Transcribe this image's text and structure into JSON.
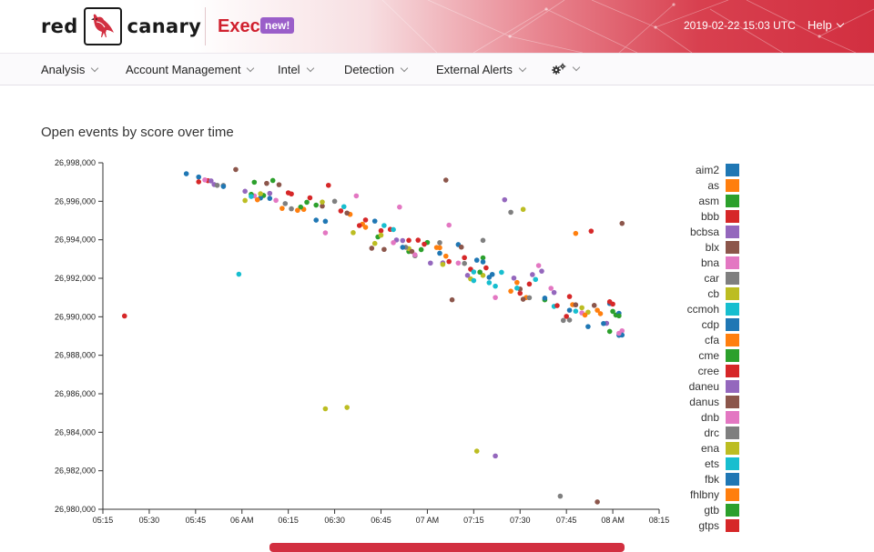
{
  "header": {
    "logo_left": "red",
    "logo_right": "canary",
    "section_title": "Exec",
    "badge": "new!",
    "timestamp": "2019-02-22 15:03 UTC",
    "help_label": "Help"
  },
  "nav": {
    "items": [
      {
        "label": "Analysis"
      },
      {
        "label": "Account Management"
      },
      {
        "label": "Intel"
      },
      {
        "label": "Detection"
      },
      {
        "label": "External Alerts"
      }
    ],
    "settings_icon": "gears-icon"
  },
  "colors": {
    "brand_red": "#d22f40",
    "badge_purple": "#9a5ec9"
  },
  "chart_data": {
    "type": "scatter",
    "title": "Open events by score over time",
    "xlabel": "",
    "ylabel": "",
    "xlim": [
      "05:15",
      "08:15"
    ],
    "ylim": [
      26980000,
      26998000
    ],
    "x_ticks": [
      "05:15",
      "05:30",
      "05:45",
      "06 AM",
      "06:15",
      "06:30",
      "06:45",
      "07 AM",
      "07:15",
      "07:30",
      "07:45",
      "08 AM",
      "08:15"
    ],
    "y_ticks": [
      "26,980,000",
      "26,982,000",
      "26,984,000",
      "26,986,000",
      "26,988,000",
      "26,990,000",
      "26,992,000",
      "26,994,000",
      "26,996,000",
      "26,998,000"
    ],
    "legend_position": "right",
    "series": [
      {
        "name": "aim2",
        "color": "#1f77b4",
        "points": [
          [
            "05:42",
            26997430
          ],
          [
            "05:46",
            26997260
          ],
          [
            "06:27",
            26994960
          ],
          [
            "07:04",
            26993300
          ],
          [
            "07:20",
            26992050
          ],
          [
            "07:59",
            26990690
          ],
          [
            "08:02",
            26989040
          ]
        ]
      },
      {
        "name": "as",
        "color": "#ff7f0e",
        "points": [
          [
            "06:20",
            26995580
          ],
          [
            "06:35",
            26995320
          ],
          [
            "07:04",
            26993590
          ],
          [
            "07:56",
            26990160
          ],
          [
            "07:32",
            26991000
          ],
          [
            "07:48",
            26994330
          ]
        ]
      },
      {
        "name": "asm",
        "color": "#2ca02c",
        "points": [
          [
            "06:07",
            26996300
          ],
          [
            "06:19",
            26995700
          ],
          [
            "06:10",
            26997080
          ],
          [
            "06:54",
            26993390
          ],
          [
            "07:18",
            26993060
          ],
          [
            "08:00",
            26990280
          ]
        ]
      },
      {
        "name": "bbb",
        "color": "#d62728",
        "points": [
          [
            "05:22",
            26990040
          ],
          [
            "05:49",
            26997070
          ],
          [
            "06:22",
            26996180
          ],
          [
            "06:32",
            26995500
          ],
          [
            "06:40",
            26995030
          ],
          [
            "06:48",
            26994540
          ],
          [
            "06:57",
            26993980
          ],
          [
            "07:14",
            26992470
          ],
          [
            "07:30",
            26991220
          ],
          [
            "07:53",
            26994450
          ],
          [
            "07:45",
            26990020
          ]
        ]
      },
      {
        "name": "bcbsa",
        "color": "#9467bd",
        "points": [
          [
            "05:51",
            26996870
          ],
          [
            "06:01",
            26996520
          ],
          [
            "06:50",
            26993990
          ],
          [
            "07:05",
            26992800
          ],
          [
            "07:25",
            26996080
          ],
          [
            "07:34",
            26992190
          ],
          [
            "07:41",
            26991260
          ],
          [
            "07:58",
            26989660
          ]
        ]
      },
      {
        "name": "blx",
        "color": "#8c564b",
        "points": [
          [
            "05:58",
            26997650
          ],
          [
            "06:12",
            26996860
          ],
          [
            "06:34",
            26995390
          ],
          [
            "06:46",
            26993500
          ],
          [
            "07:06",
            26997100
          ],
          [
            "07:08",
            26990880
          ],
          [
            "07:31",
            26990910
          ],
          [
            "07:54",
            26990590
          ],
          [
            "08:03",
            26994850
          ],
          [
            "07:55",
            26980380
          ]
        ]
      },
      {
        "name": "bna",
        "color": "#e377c2",
        "points": [
          [
            "05:48",
            26997110
          ],
          [
            "06:04",
            26996280
          ],
          [
            "06:37",
            26996280
          ],
          [
            "06:51",
            26995700
          ],
          [
            "07:07",
            26994760
          ],
          [
            "07:22",
            26991000
          ],
          [
            "07:36",
            26992660
          ],
          [
            "07:50",
            26990200
          ],
          [
            "08:03",
            26989270
          ]
        ]
      },
      {
        "name": "car",
        "color": "#7f7f7f",
        "points": [
          [
            "05:52",
            26996830
          ],
          [
            "06:14",
            26995880
          ],
          [
            "06:30",
            26996000
          ],
          [
            "06:56",
            26993170
          ],
          [
            "07:04",
            26993850
          ],
          [
            "07:18",
            26993970
          ],
          [
            "07:27",
            26995430
          ],
          [
            "07:44",
            26989810
          ],
          [
            "07:43",
            26980680
          ]
        ]
      },
      {
        "name": "cb",
        "color": "#bcbd22",
        "points": [
          [
            "06:01",
            26996040
          ],
          [
            "06:36",
            26994370
          ],
          [
            "06:43",
            26993810
          ],
          [
            "06:54",
            26993540
          ],
          [
            "07:14",
            26991970
          ],
          [
            "07:31",
            26995580
          ],
          [
            "07:52",
            26990240
          ],
          [
            "06:27",
            26985220
          ],
          [
            "06:34",
            26985290
          ],
          [
            "07:16",
            26983020
          ]
        ]
      },
      {
        "name": "ccmoh",
        "color": "#17becf",
        "points": [
          [
            "05:59",
            26992210
          ],
          [
            "06:33",
            26995720
          ],
          [
            "06:49",
            26994530
          ],
          [
            "07:15",
            26992330
          ],
          [
            "07:20",
            26991770
          ],
          [
            "07:24",
            26992310
          ],
          [
            "07:35",
            26991940
          ],
          [
            "07:48",
            26990290
          ]
        ]
      },
      {
        "name": "cdp",
        "color": "#1f77b4",
        "points": [
          [
            "06:06",
            26996170
          ],
          [
            "06:24",
            26995020
          ],
          [
            "06:43",
            26994970
          ],
          [
            "07:10",
            26993750
          ],
          [
            "07:21",
            26992200
          ],
          [
            "07:46",
            26990340
          ],
          [
            "07:57",
            26989650
          ],
          [
            "08:03",
            26989050
          ]
        ]
      },
      {
        "name": "cfa",
        "color": "#ff7f0e",
        "points": [
          [
            "06:05",
            26996080
          ],
          [
            "06:18",
            26995530
          ],
          [
            "06:39",
            26994810
          ],
          [
            "07:03",
            26993600
          ],
          [
            "07:29",
            26991780
          ],
          [
            "07:47",
            26990630
          ],
          [
            "07:55",
            26990340
          ]
        ]
      },
      {
        "name": "cme",
        "color": "#2ca02c",
        "points": [
          [
            "06:03",
            26996360
          ],
          [
            "06:21",
            26995950
          ],
          [
            "06:44",
            26994150
          ],
          [
            "07:00",
            26993860
          ],
          [
            "07:38",
            26990880
          ],
          [
            "08:01",
            26990090
          ]
        ]
      },
      {
        "name": "cree",
        "color": "#d62728",
        "points": [
          [
            "05:46",
            26997010
          ],
          [
            "06:16",
            26996380
          ],
          [
            "06:28",
            26996830
          ],
          [
            "06:45",
            26994470
          ],
          [
            "06:59",
            26993770
          ],
          [
            "07:12",
            26993070
          ],
          [
            "07:33",
            26991700
          ],
          [
            "07:46",
            26991050
          ],
          [
            "07:59",
            26990780
          ]
        ]
      },
      {
        "name": "daneu",
        "color": "#9467bd",
        "points": [
          [
            "05:50",
            26997060
          ],
          [
            "06:09",
            26996410
          ],
          [
            "06:52",
            26993960
          ],
          [
            "07:01",
            26992790
          ],
          [
            "07:13",
            26992150
          ],
          [
            "07:28",
            26992010
          ],
          [
            "07:37",
            26992370
          ],
          [
            "07:22",
            26982770
          ]
        ]
      },
      {
        "name": "danus",
        "color": "#8c564b",
        "points": [
          [
            "06:08",
            26996930
          ],
          [
            "06:26",
            26995750
          ],
          [
            "06:42",
            26993560
          ],
          [
            "06:55",
            26993390
          ],
          [
            "07:11",
            26993620
          ],
          [
            "07:30",
            26991440
          ],
          [
            "07:48",
            26990620
          ]
        ]
      },
      {
        "name": "dnb",
        "color": "#e377c2",
        "points": [
          [
            "06:11",
            26996050
          ],
          [
            "06:27",
            26994360
          ],
          [
            "06:49",
            26993850
          ],
          [
            "06:56",
            26993220
          ],
          [
            "07:10",
            26992790
          ],
          [
            "07:40",
            26991480
          ],
          [
            "08:02",
            26989140
          ]
        ]
      },
      {
        "name": "drc",
        "color": "#7f7f7f",
        "points": [
          [
            "05:54",
            26996820
          ],
          [
            "06:16",
            26995610
          ],
          [
            "06:53",
            26993610
          ],
          [
            "07:12",
            26992770
          ],
          [
            "07:33",
            26990990
          ],
          [
            "07:46",
            26989830
          ]
        ]
      },
      {
        "name": "ena",
        "color": "#bcbd22",
        "points": [
          [
            "06:06",
            26996390
          ],
          [
            "06:26",
            26995960
          ],
          [
            "06:45",
            26994240
          ],
          [
            "07:05",
            26992720
          ],
          [
            "07:18",
            26992150
          ],
          [
            "07:50",
            26990470
          ]
        ]
      },
      {
        "name": "ets",
        "color": "#17becf",
        "points": [
          [
            "06:03",
            26996250
          ],
          [
            "06:46",
            26994740
          ],
          [
            "07:15",
            26991880
          ],
          [
            "07:22",
            26991590
          ],
          [
            "07:29",
            26991490
          ],
          [
            "07:41",
            26990540
          ]
        ]
      },
      {
        "name": "fbk",
        "color": "#1f77b4",
        "points": [
          [
            "05:54",
            26996770
          ],
          [
            "06:09",
            26996150
          ],
          [
            "06:52",
            26993610
          ],
          [
            "07:16",
            26992940
          ],
          [
            "07:18",
            26992850
          ],
          [
            "07:38",
            26990970
          ],
          [
            "07:52",
            26989490
          ],
          [
            "08:02",
            26990180
          ]
        ]
      },
      {
        "name": "fhlbny",
        "color": "#ff7f0e",
        "points": [
          [
            "06:13",
            26995630
          ],
          [
            "06:40",
            26994650
          ],
          [
            "07:06",
            26993150
          ],
          [
            "07:27",
            26991330
          ],
          [
            "07:51",
            26990090
          ]
        ]
      },
      {
        "name": "gtb",
        "color": "#2ca02c",
        "points": [
          [
            "06:04",
            26996990
          ],
          [
            "06:24",
            26995800
          ],
          [
            "06:58",
            26993490
          ],
          [
            "07:17",
            26992320
          ],
          [
            "07:59",
            26989240
          ],
          [
            "08:02",
            26990050
          ]
        ]
      },
      {
        "name": "gtps",
        "color": "#d62728",
        "points": [
          [
            "06:15",
            26996440
          ],
          [
            "06:38",
            26994740
          ],
          [
            "06:54",
            26993970
          ],
          [
            "07:07",
            26992870
          ],
          [
            "07:19",
            26992540
          ],
          [
            "07:42",
            26990580
          ],
          [
            "08:00",
            26990660
          ]
        ]
      }
    ]
  }
}
